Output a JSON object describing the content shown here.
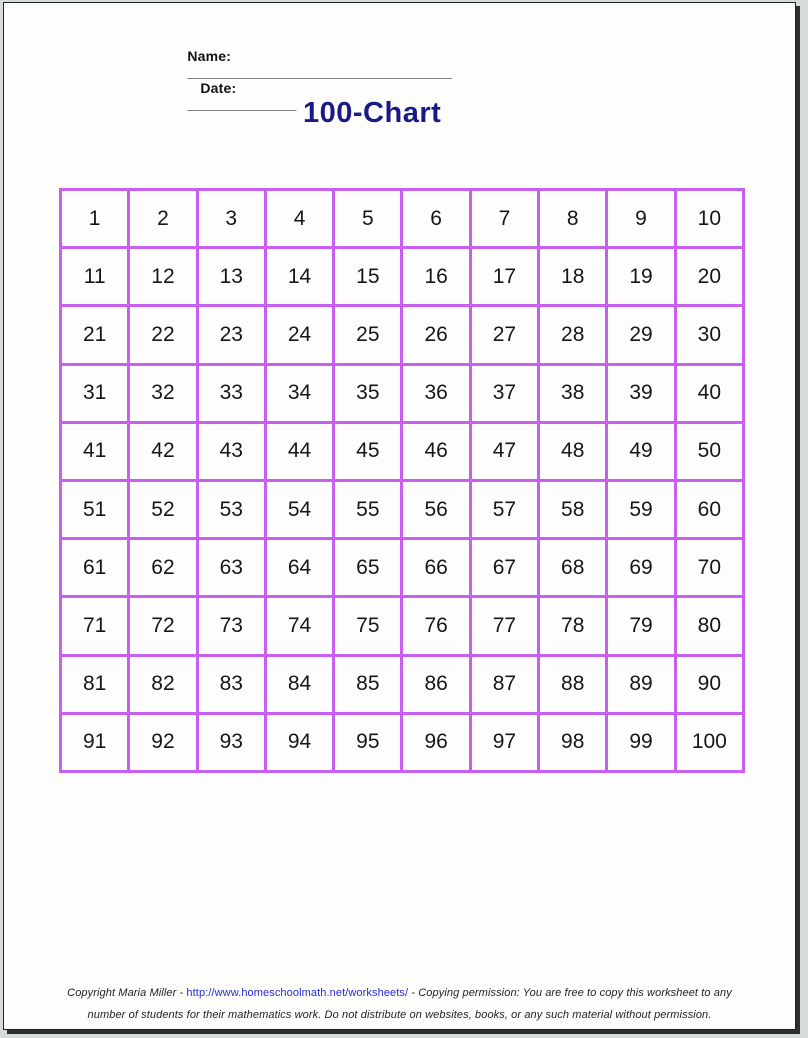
{
  "header": {
    "name_label": "Name:",
    "name_blank": "__________________________________",
    "date_label": "Date:",
    "date_blank": "______________"
  },
  "title": "100-Chart",
  "grid": {
    "rows": [
      [
        1,
        2,
        3,
        4,
        5,
        6,
        7,
        8,
        9,
        10
      ],
      [
        11,
        12,
        13,
        14,
        15,
        16,
        17,
        18,
        19,
        20
      ],
      [
        21,
        22,
        23,
        24,
        25,
        26,
        27,
        28,
        29,
        30
      ],
      [
        31,
        32,
        33,
        34,
        35,
        36,
        37,
        38,
        39,
        40
      ],
      [
        41,
        42,
        43,
        44,
        45,
        46,
        47,
        48,
        49,
        50
      ],
      [
        51,
        52,
        53,
        54,
        55,
        56,
        57,
        58,
        59,
        60
      ],
      [
        61,
        62,
        63,
        64,
        65,
        66,
        67,
        68,
        69,
        70
      ],
      [
        71,
        72,
        73,
        74,
        75,
        76,
        77,
        78,
        79,
        80
      ],
      [
        81,
        82,
        83,
        84,
        85,
        86,
        87,
        88,
        89,
        90
      ],
      [
        91,
        92,
        93,
        94,
        95,
        96,
        97,
        98,
        99,
        100
      ]
    ]
  },
  "footer": {
    "copyright_text": "Copyright Maria Miller - ",
    "link_text": "http://www.homeschoolmath.net/worksheets/",
    "permission_text": " - Copying permission: You are free to copy this worksheet to any",
    "line2": "number of students for their mathematics work. Do not distribute on websites, books, or any such material without permission."
  },
  "colors": {
    "title_color": "#1a1a86",
    "grid_border_color": "#c95ff0",
    "link_color": "#2929d6"
  }
}
